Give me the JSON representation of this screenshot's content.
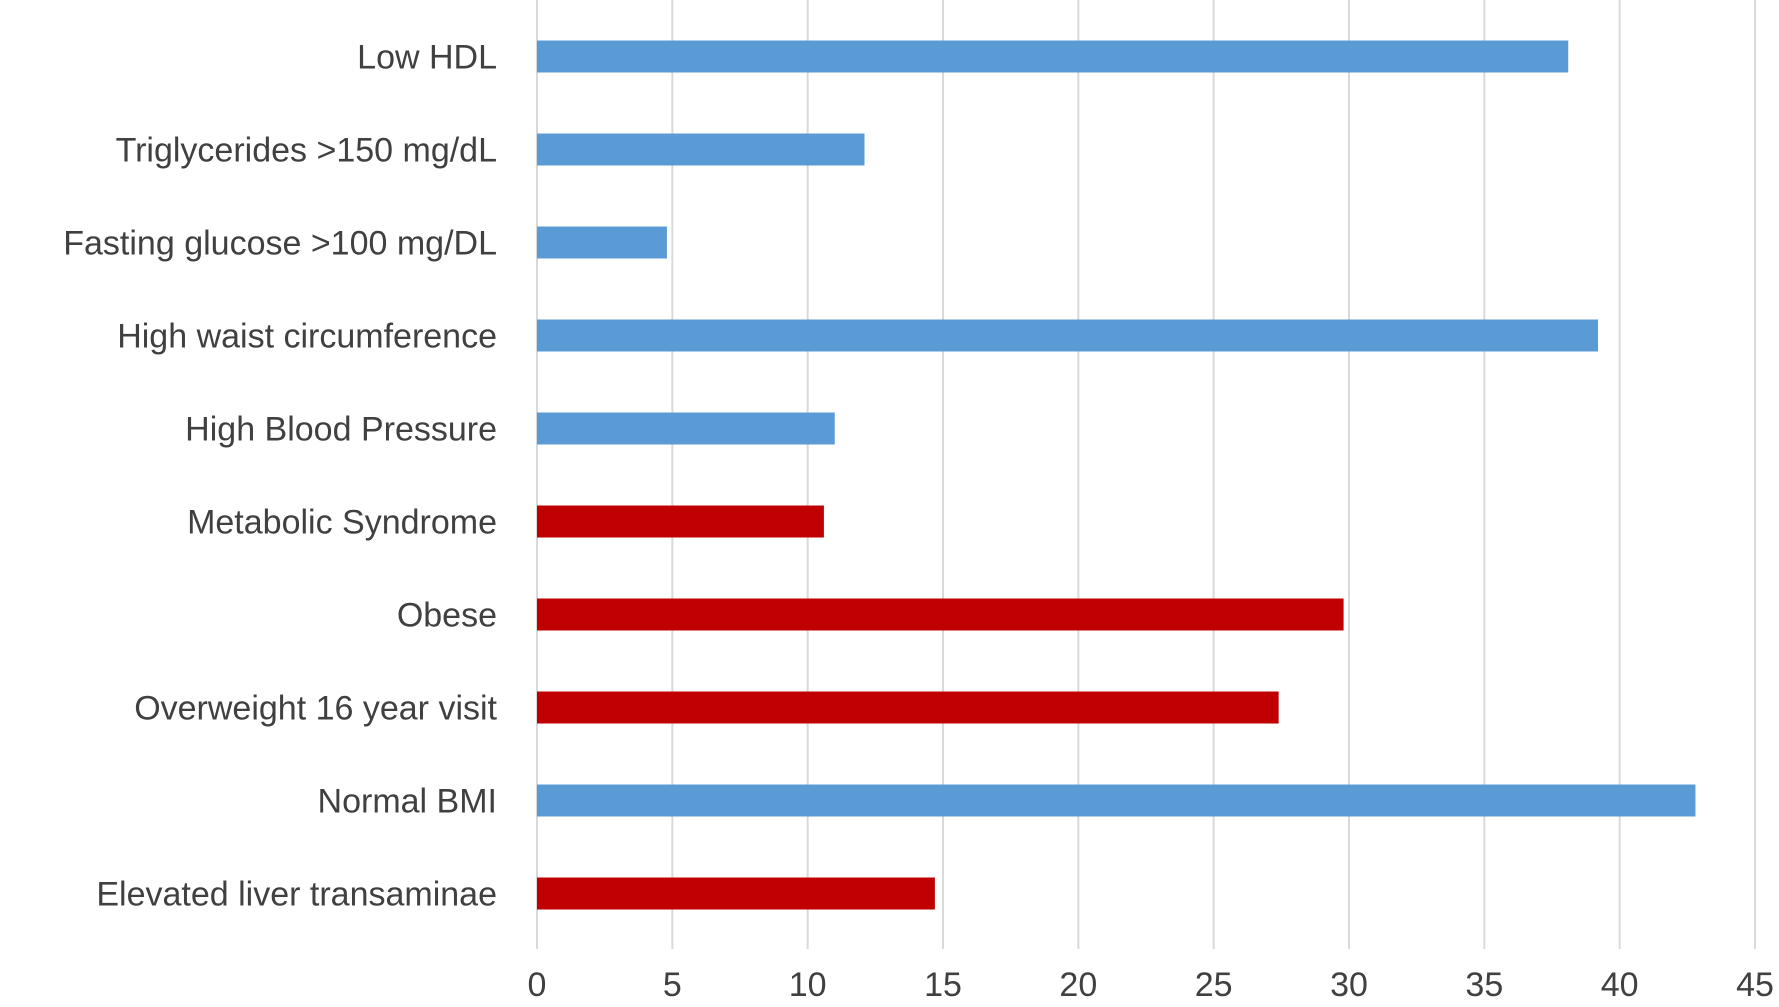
{
  "chart_data": {
    "type": "bar",
    "orientation": "horizontal",
    "categories": [
      "Low HDL",
      "Triglycerides >150 mg/dL",
      "Fasting glucose >100 mg/DL",
      "High waist circumference",
      "High Blood Pressure",
      "Metabolic Syndrome",
      "Obese",
      "Overweight 16 year visit",
      "Normal BMI",
      "Elevated liver transaminae"
    ],
    "values": [
      38.1,
      12.1,
      4.8,
      39.2,
      11.0,
      10.6,
      29.8,
      27.4,
      42.8,
      14.7
    ],
    "bar_colors": [
      "#5b9bd5",
      "#5b9bd5",
      "#5b9bd5",
      "#5b9bd5",
      "#5b9bd5",
      "#c00000",
      "#c00000",
      "#c00000",
      "#5b9bd5",
      "#c00000"
    ],
    "xlim": [
      0,
      45
    ],
    "x_ticks": [
      "0",
      "5",
      "10",
      "15",
      "20",
      "25",
      "30",
      "35",
      "40",
      "45"
    ],
    "grid": "vertical",
    "legend": "none"
  }
}
